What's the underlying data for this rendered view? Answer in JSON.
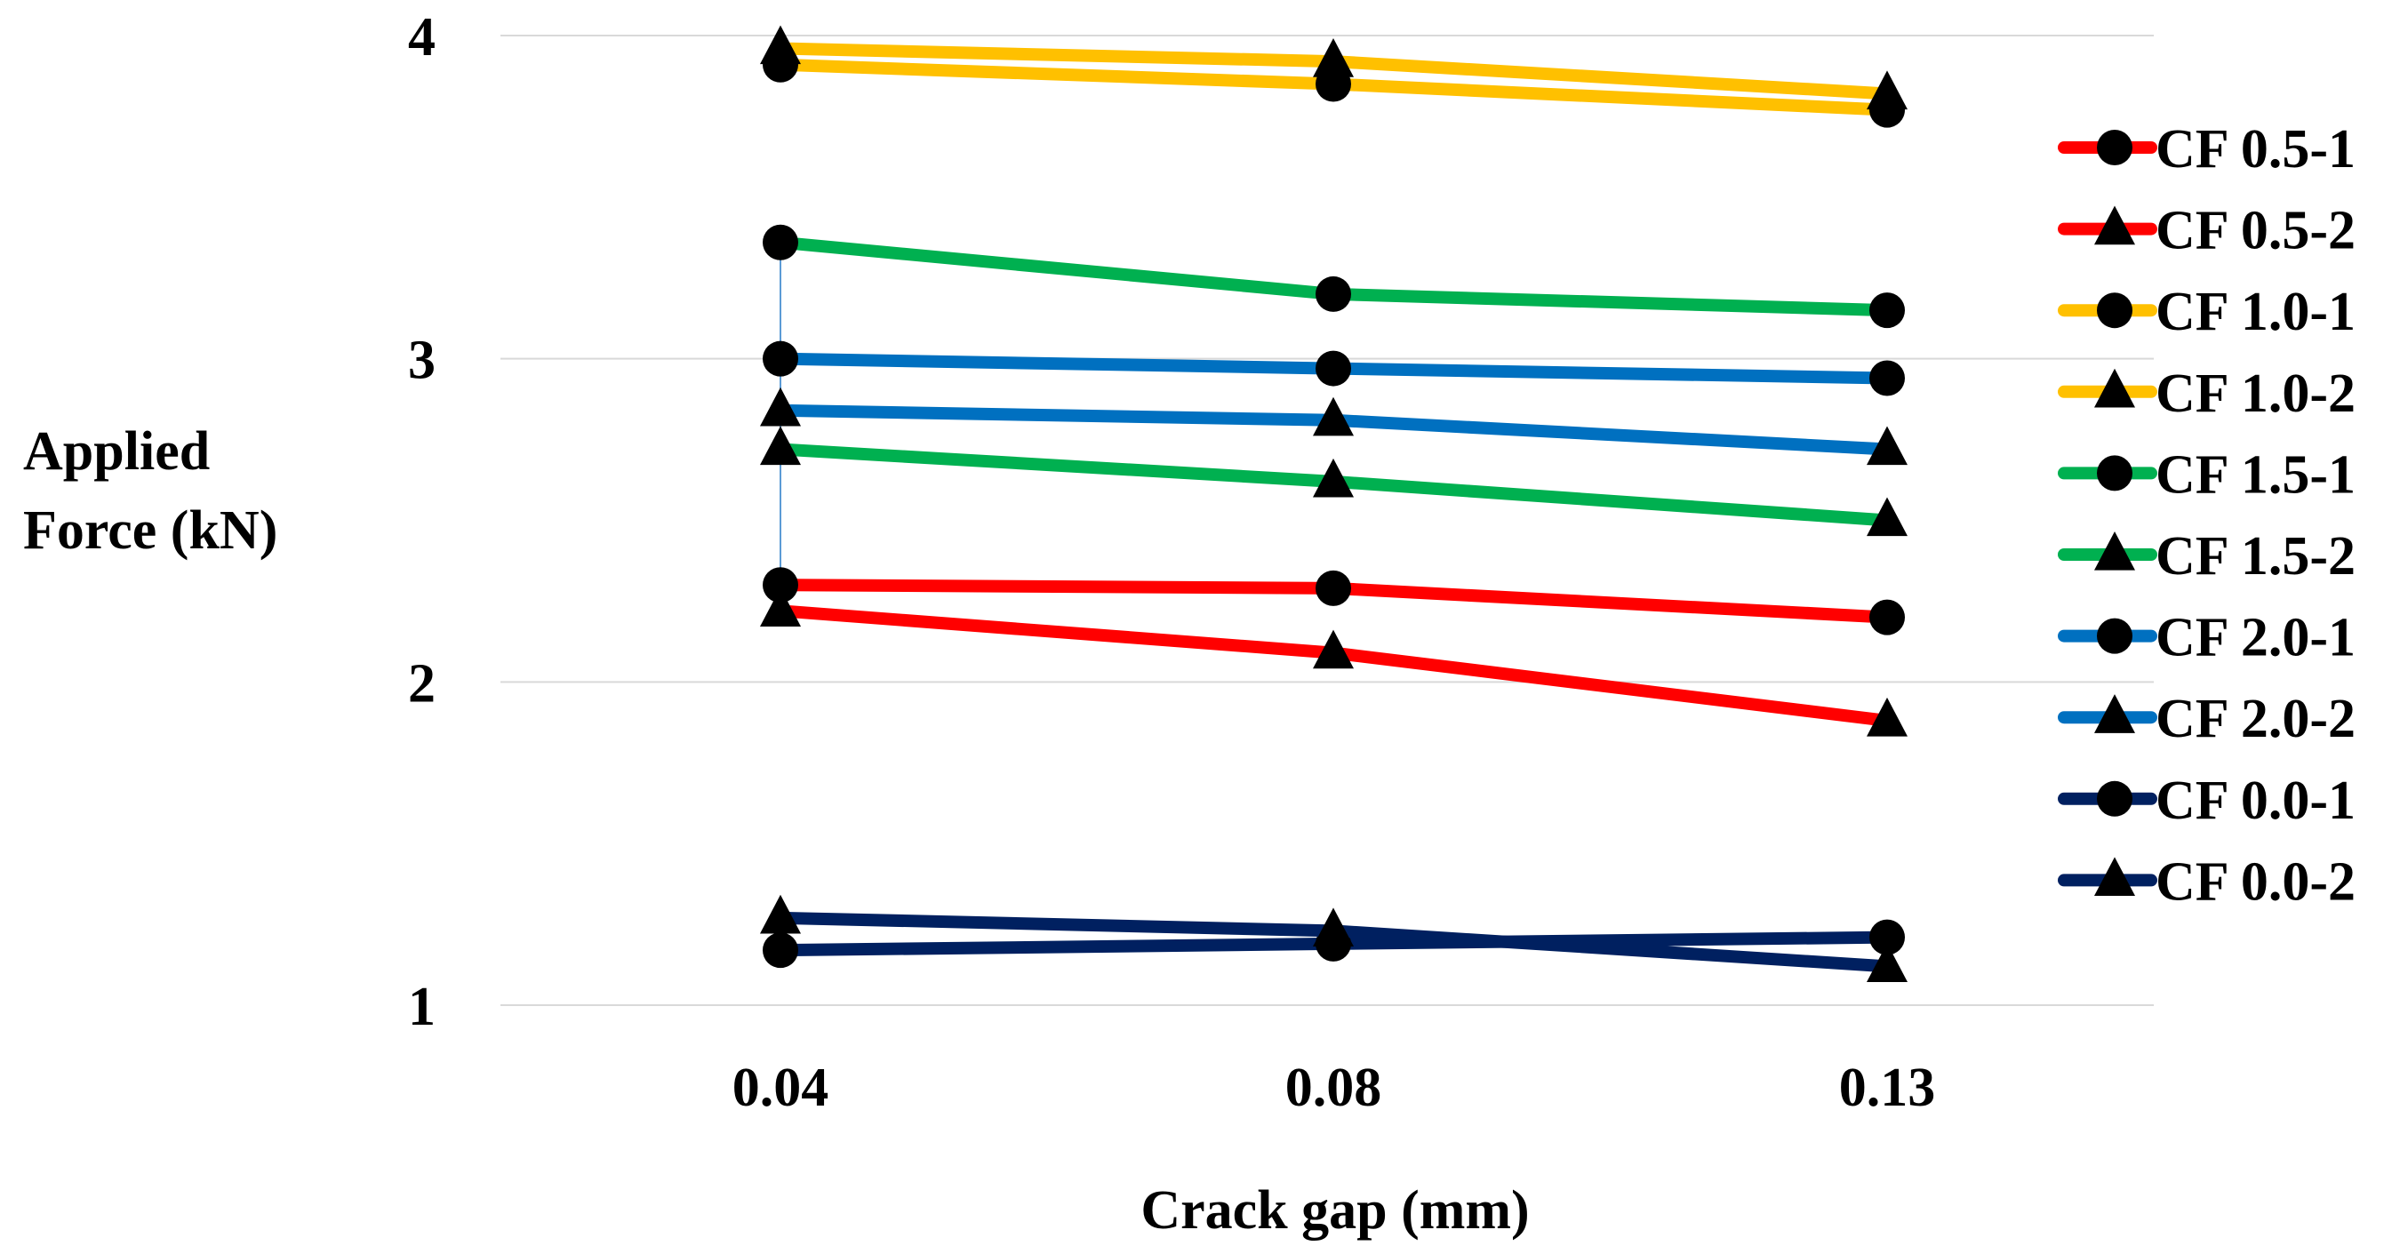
{
  "chart_data": {
    "type": "line",
    "title": "",
    "xlabel": "Crack gap (mm)",
    "ylabel_lines": [
      "Applied",
      "Force (kN)"
    ],
    "categories": [
      "0.04",
      "0.08",
      "0.13"
    ],
    "ylim": [
      1,
      4
    ],
    "yticks": [
      "1",
      "2",
      "3",
      "4"
    ],
    "grid": "horizontal",
    "legend_position": "right",
    "series": [
      {
        "name": "CF 0.5-1",
        "color": "#FF0000",
        "marker": "circle",
        "values": [
          2.3,
          2.29,
          2.2
        ]
      },
      {
        "name": "CF 0.5-2",
        "color": "#FF0000",
        "marker": "triangle",
        "values": [
          2.22,
          2.09,
          1.88
        ]
      },
      {
        "name": "CF 1.0-1",
        "color": "#FFC000",
        "marker": "circle",
        "values": [
          3.91,
          3.85,
          3.77
        ]
      },
      {
        "name": "CF 1.0-2",
        "color": "#FFC000",
        "marker": "triangle",
        "values": [
          3.96,
          3.92,
          3.82
        ]
      },
      {
        "name": "CF 1.5-1",
        "color": "#00B050",
        "marker": "circle",
        "values": [
          3.36,
          3.2,
          3.15
        ]
      },
      {
        "name": "CF 1.5-2",
        "color": "#00B050",
        "marker": "triangle",
        "values": [
          2.72,
          2.62,
          2.5
        ]
      },
      {
        "name": "CF 2.0-1",
        "color": "#0070C0",
        "marker": "circle",
        "values": [
          3.0,
          2.97,
          2.94
        ]
      },
      {
        "name": "CF 2.0-2",
        "color": "#0070C0",
        "marker": "triangle",
        "values": [
          2.84,
          2.81,
          2.72
        ]
      },
      {
        "name": "CF 0.0-1",
        "color": "#002060",
        "marker": "circle",
        "values": [
          1.17,
          1.19,
          1.21
        ]
      },
      {
        "name": "CF 0.0-2",
        "color": "#002060",
        "marker": "triangle",
        "values": [
          1.27,
          1.23,
          1.12
        ]
      }
    ]
  }
}
